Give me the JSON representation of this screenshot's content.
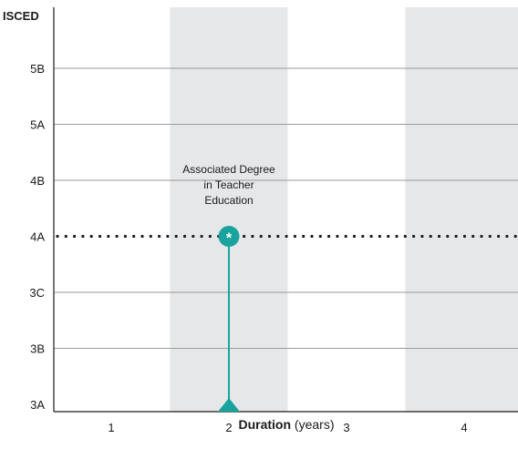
{
  "chart_data": {
    "type": "scatter",
    "ylabel": "ISCED",
    "xlabel_bold": "Duration",
    "xlabel_rest": " (years)",
    "x_ticks": [
      "1",
      "2",
      "3",
      "4"
    ],
    "y_ticks": [
      "3A",
      "3B",
      "3C",
      "4A",
      "4B",
      "5A",
      "5B"
    ],
    "shaded_columns": [
      "2",
      "4"
    ],
    "reference_level": "4A",
    "programme": {
      "label_lines": [
        "Associated Degree",
        "in Teacher",
        "Education"
      ],
      "x": 2,
      "y": "4A",
      "marker_symbol": "*",
      "stem_start": "3A"
    },
    "colors": {
      "shading": "#e6e7e8",
      "marker": "#1aa39e",
      "gridline": "#9a9a9a",
      "reference_line": "#1a1a1a"
    }
  }
}
